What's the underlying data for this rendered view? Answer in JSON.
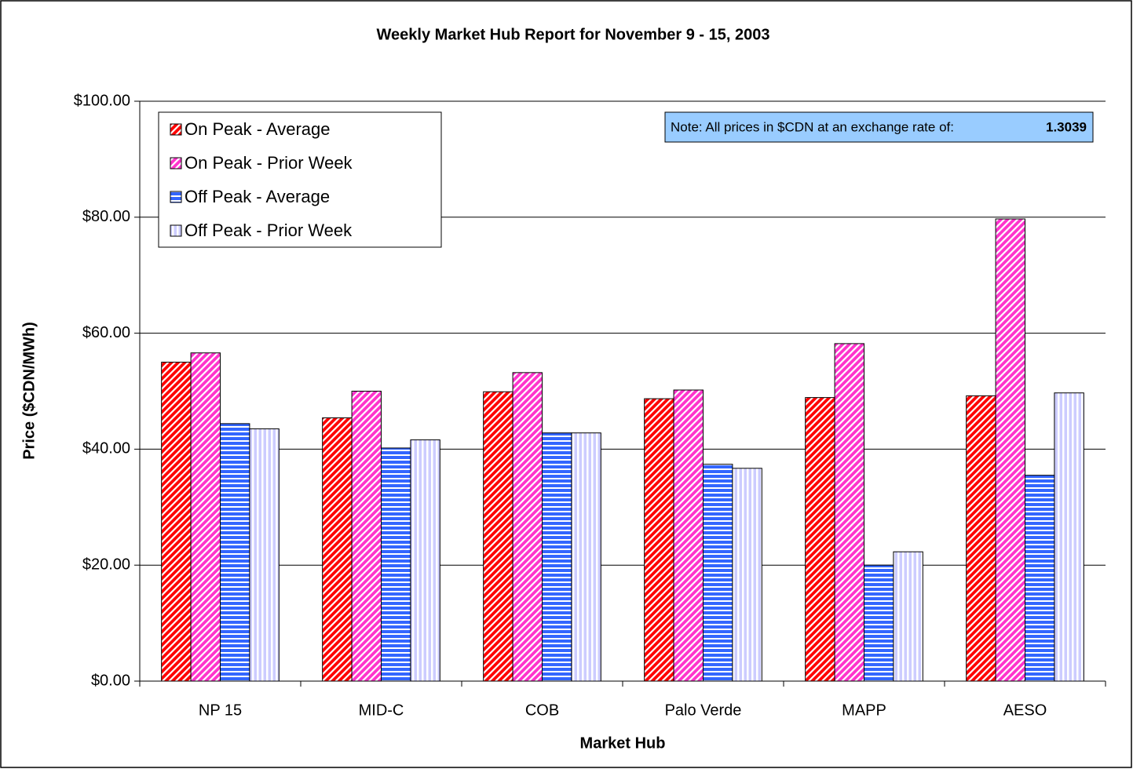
{
  "chart_data": {
    "type": "bar",
    "title": "Weekly Market Hub Report for November 9 - 15,  2003",
    "x_label": "Market Hub",
    "y_label": "Price ($CDN/MWh)",
    "note": "Note: All prices in $CDN at an exchange rate of:",
    "exchange_rate": "1.3039",
    "categories": [
      "NP 15",
      "MID-C",
      "COB",
      "Palo Verde",
      "MAPP",
      "AESO"
    ],
    "series": [
      {
        "name": "On Peak - Average",
        "color": "#ff0000",
        "values": [
          55.0,
          45.4,
          49.9,
          48.7,
          48.9,
          49.2
        ]
      },
      {
        "name": "On Peak - Prior Week",
        "color": "#ff33cc",
        "values": [
          56.6,
          50.0,
          53.2,
          50.2,
          58.2,
          79.7
        ]
      },
      {
        "name": "Off Peak - Average",
        "color": "#3366ff",
        "values": [
          44.4,
          40.2,
          42.8,
          37.4,
          20.0,
          35.5
        ]
      },
      {
        "name": "Off Peak - Prior Week",
        "color": "#ccccff",
        "values": [
          43.5,
          41.6,
          42.8,
          36.7,
          22.3,
          49.7
        ]
      }
    ],
    "ylim": [
      0,
      100
    ],
    "yticks": [
      {
        "value": 0,
        "label": "$0.00"
      },
      {
        "value": 20,
        "label": "$20.00"
      },
      {
        "value": 40,
        "label": "$40.00"
      },
      {
        "value": 60,
        "label": "$60.00"
      },
      {
        "value": 80,
        "label": "$80.00"
      },
      {
        "value": 100,
        "label": "$100.00"
      }
    ],
    "grid": true,
    "legend": "upper left"
  }
}
